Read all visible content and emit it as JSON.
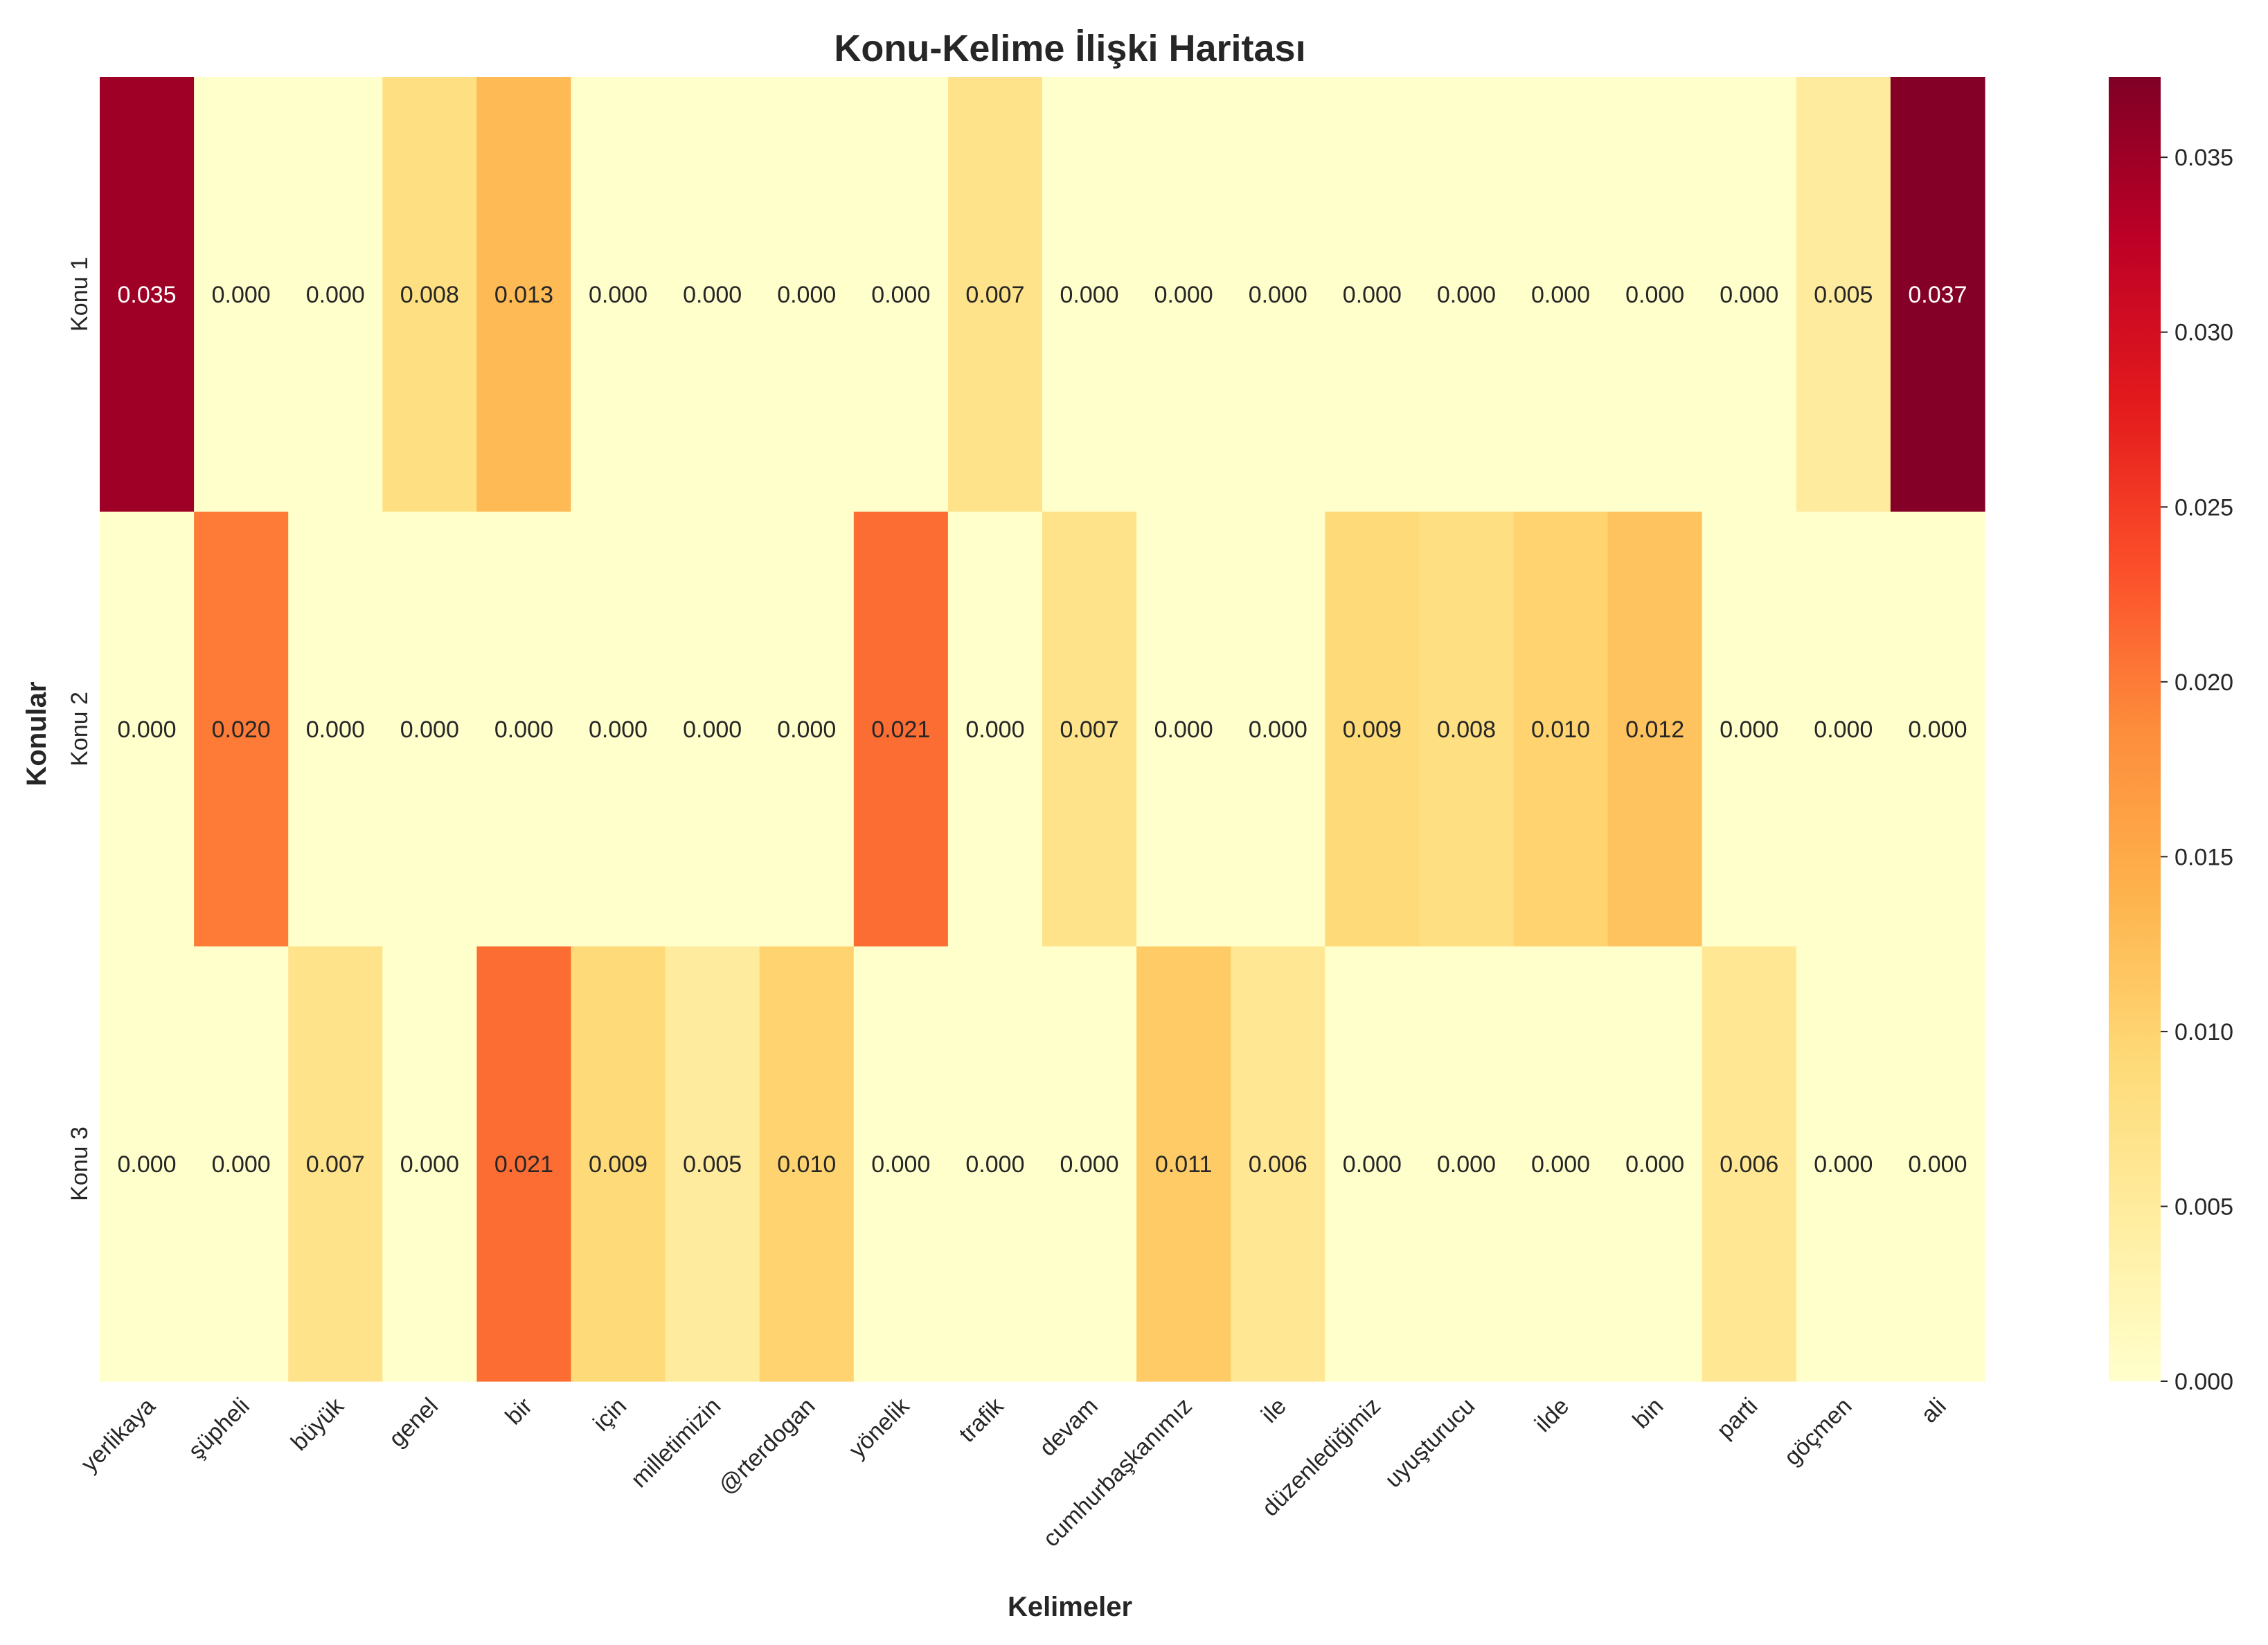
{
  "chart_data": {
    "type": "heatmap",
    "title": "Konu-Kelime İlişki Haritası",
    "xlabel": "Kelimeler",
    "ylabel": "Konular",
    "colormap": "YlOrRd",
    "x_categories": [
      "yerlikaya",
      "şüpheli",
      "büyük",
      "genel",
      "bir",
      "için",
      "milletimizin",
      "@rterdogan",
      "yönelik",
      "trafik",
      "devam",
      "cumhurbaşkanımız",
      "ile",
      "düzenlediğimiz",
      "uyuşturucu",
      "ilde",
      "bin",
      "parti",
      "göçmen",
      "ali"
    ],
    "y_categories": [
      "Konu 1",
      "Konu 2",
      "Konu 3"
    ],
    "values": [
      [
        0.035,
        0.0,
        0.0,
        0.008,
        0.013,
        0.0,
        0.0,
        0.0,
        0.0,
        0.007,
        0.0,
        0.0,
        0.0,
        0.0,
        0.0,
        0.0,
        0.0,
        0.0,
        0.005,
        0.037
      ],
      [
        0.0,
        0.02,
        0.0,
        0.0,
        0.0,
        0.0,
        0.0,
        0.0,
        0.021,
        0.0,
        0.007,
        0.0,
        0.0,
        0.009,
        0.008,
        0.01,
        0.012,
        0.0,
        0.0,
        0.0
      ],
      [
        0.0,
        0.0,
        0.007,
        0.0,
        0.021,
        0.009,
        0.005,
        0.01,
        0.0,
        0.0,
        0.0,
        0.011,
        0.006,
        0.0,
        0.0,
        0.0,
        0.0,
        0.006,
        0.0,
        0.0
      ]
    ],
    "value_labels": [
      [
        "0.035",
        "0.000",
        "0.000",
        "0.008",
        "0.013",
        "0.000",
        "0.000",
        "0.000",
        "0.000",
        "0.007",
        "0.000",
        "0.000",
        "0.000",
        "0.000",
        "0.000",
        "0.000",
        "0.000",
        "0.000",
        "0.005",
        "0.037"
      ],
      [
        "0.000",
        "0.020",
        "0.000",
        "0.000",
        "0.000",
        "0.000",
        "0.000",
        "0.000",
        "0.021",
        "0.000",
        "0.007",
        "0.000",
        "0.000",
        "0.009",
        "0.008",
        "0.010",
        "0.012",
        "0.000",
        "0.000",
        "0.000"
      ],
      [
        "0.000",
        "0.000",
        "0.007",
        "0.000",
        "0.021",
        "0.009",
        "0.005",
        "0.010",
        "0.000",
        "0.000",
        "0.000",
        "0.011",
        "0.006",
        "0.000",
        "0.000",
        "0.000",
        "0.000",
        "0.006",
        "0.000",
        "0.000"
      ]
    ],
    "colorbar": {
      "range": [
        0.0,
        0.0373
      ],
      "ticks": [
        0.0,
        0.005,
        0.01,
        0.015,
        0.02,
        0.025,
        0.03,
        0.035
      ],
      "tick_labels": [
        "0.000",
        "0.005",
        "0.010",
        "0.015",
        "0.020",
        "0.025",
        "0.030",
        "0.035"
      ]
    },
    "grid": false
  }
}
